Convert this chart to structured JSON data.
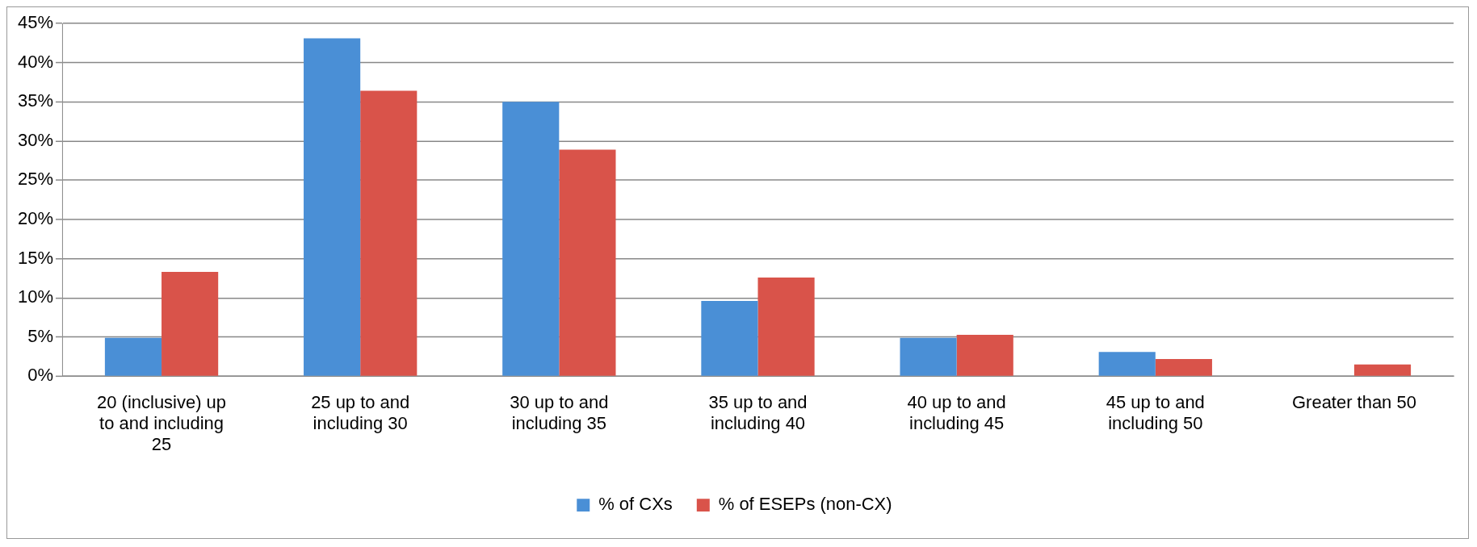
{
  "chart_data": {
    "type": "bar",
    "categories": [
      "20 (inclusive) up to and including 25",
      "25 up to and including 30",
      "30 up to and including 35",
      "35 up to and including 40",
      "40 up to and including 45",
      "45 up to and including 50",
      "Greater than 50"
    ],
    "series": [
      {
        "name": "% of CXs",
        "color": "#4a8fd6",
        "values": [
          4.9,
          43.1,
          35.0,
          9.6,
          4.9,
          3.1,
          0
        ]
      },
      {
        "name": "% of ESEPs (non-CX)",
        "color": "#d9534a",
        "values": [
          13.3,
          36.4,
          28.9,
          12.6,
          5.3,
          2.2,
          1.5
        ]
      }
    ],
    "ylim": [
      0,
      45
    ],
    "yticks": [
      {
        "value": 0,
        "label": "0%"
      },
      {
        "value": 5,
        "label": "5%"
      },
      {
        "value": 10,
        "label": "10%"
      },
      {
        "value": 15,
        "label": "15%"
      },
      {
        "value": 20,
        "label": "20%"
      },
      {
        "value": 25,
        "label": "25%"
      },
      {
        "value": 30,
        "label": "30%"
      },
      {
        "value": 35,
        "label": "35%"
      },
      {
        "value": 40,
        "label": "40%"
      },
      {
        "value": 45,
        "label": "45%"
      }
    ],
    "grid": "y",
    "legend": "bottom"
  }
}
